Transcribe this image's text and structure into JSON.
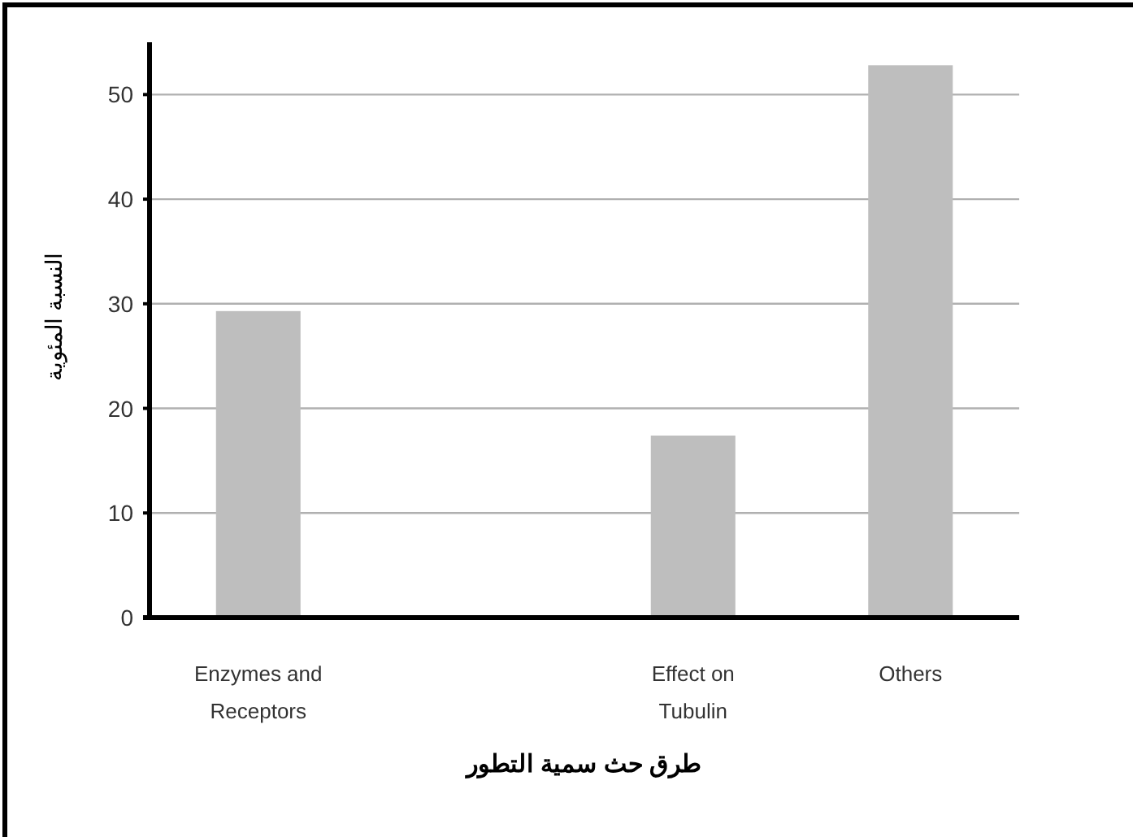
{
  "chart_data": {
    "type": "bar",
    "xlabel": "طرق حث سمية التطور",
    "ylabel": "النسبة المئوية",
    "categories": [
      "Enzymes and Receptors",
      null,
      "Effect on Tubulin",
      "Others"
    ],
    "values": [
      29.3,
      null,
      17.4,
      52.8
    ],
    "color": "#bebebe",
    "ylim": [
      0,
      55
    ],
    "yticks": [
      0,
      10,
      20,
      30,
      40,
      50
    ],
    "grid": "y"
  }
}
